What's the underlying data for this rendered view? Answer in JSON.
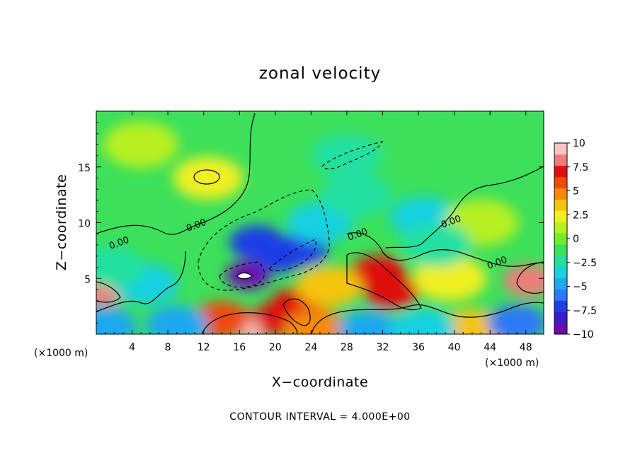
{
  "chart_data": {
    "type": "heatmap",
    "title": "zonal velocity",
    "xlabel": "X−coordinate",
    "ylabel": "Z−coordinate",
    "x_unit_left": "(×1000 m)",
    "x_unit_right": "(×1000 m)",
    "footer": "CONTOUR INTERVAL = 4.000E+00",
    "xlim": [
      0,
      50
    ],
    "ylim": [
      0,
      20
    ],
    "x_ticks": [
      4,
      8,
      12,
      16,
      20,
      24,
      28,
      32,
      36,
      40,
      44,
      48
    ],
    "x_tick_labels": [
      "4",
      "8",
      "12",
      "16",
      "20",
      "24",
      "28",
      "32",
      "36",
      "40",
      "44",
      "48"
    ],
    "y_ticks": [
      5,
      10,
      15
    ],
    "y_tick_labels": [
      "5",
      "10",
      "15"
    ],
    "colorbar": {
      "min": -10,
      "max": 10,
      "tick_labels": [
        "10",
        "7.5",
        "5",
        "2.5",
        "0",
        "−2.5",
        "−5",
        "−7.5",
        "−10"
      ],
      "tick_values": [
        10,
        7.5,
        5,
        2.5,
        0,
        -2.5,
        -5,
        -7.5,
        -10
      ],
      "colors": [
        "#6a0dad",
        "#3a1ec8",
        "#1f3ee6",
        "#2f78f5",
        "#1ea8f0",
        "#17d2e0",
        "#22e0a0",
        "#3ce05a",
        "#74ec2c",
        "#b8f020",
        "#f0f020",
        "#f5c410",
        "#f58a08",
        "#ef4a08",
        "#e01010",
        "#f07c7c",
        "#fbc4c4"
      ]
    },
    "contour_interval": 4.0,
    "contour_labels": [
      "0.00",
      "0.00",
      "0.00",
      "0.00",
      "0.00"
    ],
    "features": [
      {
        "x": 17.0,
        "z": 5.3,
        "value": -10.0
      },
      {
        "x": 20.5,
        "z": 7.0,
        "value": -8.0
      },
      {
        "x": 23.0,
        "z": 7.6,
        "value": -8.0
      },
      {
        "x": 18.0,
        "z": 8.2,
        "value": -7.0
      },
      {
        "x": 25.0,
        "z": 10.0,
        "value": -4.0
      },
      {
        "x": 28.0,
        "z": 16.0,
        "value": -3.0
      },
      {
        "x": 36.5,
        "z": 10.5,
        "value": -4.0
      },
      {
        "x": 12.5,
        "z": 14.0,
        "value": 3.0
      },
      {
        "x": 5.0,
        "z": 17.0,
        "value": 1.5
      },
      {
        "x": 43.0,
        "z": 10.0,
        "value": 1.5
      },
      {
        "x": 31.5,
        "z": 5.5,
        "value": 7.0
      },
      {
        "x": 33.0,
        "z": 3.8,
        "value": 7.5
      },
      {
        "x": 17.5,
        "z": 0.8,
        "value": 10.0
      },
      {
        "x": 20.0,
        "z": 1.3,
        "value": 8.0
      },
      {
        "x": 22.5,
        "z": 2.6,
        "value": 7.0
      },
      {
        "x": 14.0,
        "z": 1.3,
        "value": 6.0
      },
      {
        "x": 0.6,
        "z": 4.0,
        "value": 8.5
      },
      {
        "x": 48.3,
        "z": 4.8,
        "value": 8.5
      },
      {
        "x": 26.0,
        "z": 4.3,
        "value": 4.0
      },
      {
        "x": 24.5,
        "z": 0.5,
        "value": 5.0
      },
      {
        "x": 42.0,
        "z": 0.4,
        "value": 4.0
      },
      {
        "x": 39.5,
        "z": 5.0,
        "value": 2.0
      },
      {
        "x": 5.5,
        "z": 4.5,
        "value": -4.0
      },
      {
        "x": 1.5,
        "z": 6.0,
        "value": -3.0
      },
      {
        "x": 9.0,
        "z": 0.8,
        "value": -5.0
      },
      {
        "x": 1.0,
        "z": 0.7,
        "value": -5.0
      },
      {
        "x": 30.5,
        "z": 0.4,
        "value": -5.0
      },
      {
        "x": 36.5,
        "z": 0.4,
        "value": -4.0
      },
      {
        "x": 47.0,
        "z": 1.0,
        "value": -6.0
      },
      {
        "x": 38.0,
        "z": 8.0,
        "value": -3.0
      },
      {
        "x": 29.0,
        "z": 12.5,
        "value": -2.5
      },
      {
        "x": 36.0,
        "z": 17.0,
        "value": -1.5
      }
    ]
  }
}
